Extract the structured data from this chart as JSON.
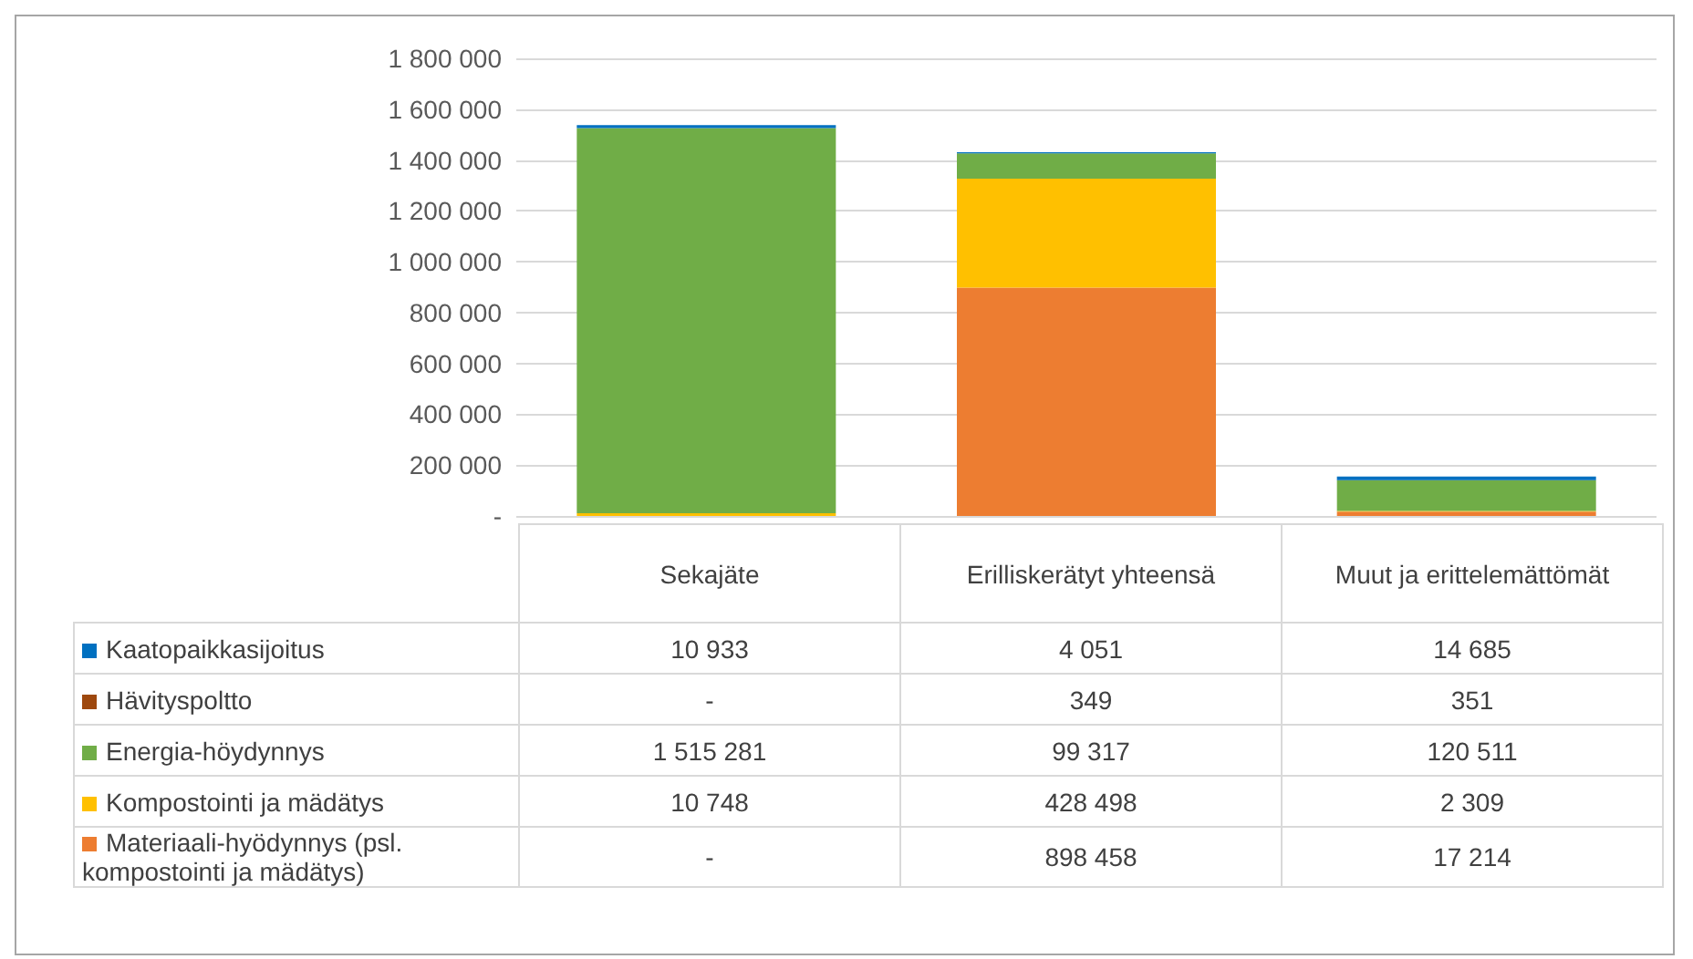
{
  "chart_data": {
    "type": "bar",
    "stacked": true,
    "categories": [
      "Sekajäte",
      "Erilliskerätyt yhteensä",
      "Muut ja erittelemättömät"
    ],
    "series": [
      {
        "name": "Materiaali-hyödynnys (psl. kompostointi ja mädätys)",
        "color": "#ed7d31",
        "values": [
          null,
          898458,
          17214
        ],
        "value_labels": [
          "-",
          "898 458",
          "17 214"
        ]
      },
      {
        "name": "Kompostointi ja mädätys",
        "color": "#ffc000",
        "values": [
          10748,
          428498,
          2309
        ],
        "value_labels": [
          "10 748",
          "428 498",
          "2 309"
        ]
      },
      {
        "name": "Energia-höydynnys",
        "color": "#70ad47",
        "values": [
          1515281,
          99317,
          120511
        ],
        "value_labels": [
          "1 515 281",
          "99 317",
          "120 511"
        ]
      },
      {
        "name": "Hävityspoltto",
        "color": "#9e480e",
        "values": [
          null,
          349,
          351
        ],
        "value_labels": [
          "-",
          "349",
          "351"
        ]
      },
      {
        "name": "Kaatopaikkasijoitus",
        "color": "#0070c0",
        "values": [
          10933,
          4051,
          14685
        ],
        "value_labels": [
          "10 933",
          "4 051",
          "14 685"
        ]
      }
    ],
    "ylim": [
      0,
      1800000
    ],
    "yticks": [
      {
        "value": 0,
        "label": "-"
      },
      {
        "value": 200000,
        "label": "200 000"
      },
      {
        "value": 400000,
        "label": "400 000"
      },
      {
        "value": 600000,
        "label": "600 000"
      },
      {
        "value": 800000,
        "label": "800 000"
      },
      {
        "value": 1000000,
        "label": "1 000 000"
      },
      {
        "value": 1200000,
        "label": "1 200 000"
      },
      {
        "value": 1400000,
        "label": "1 400 000"
      },
      {
        "value": 1600000,
        "label": "1 600 000"
      },
      {
        "value": 1800000,
        "label": "1 800 000"
      }
    ],
    "grid": "y",
    "legend": "bottom"
  }
}
